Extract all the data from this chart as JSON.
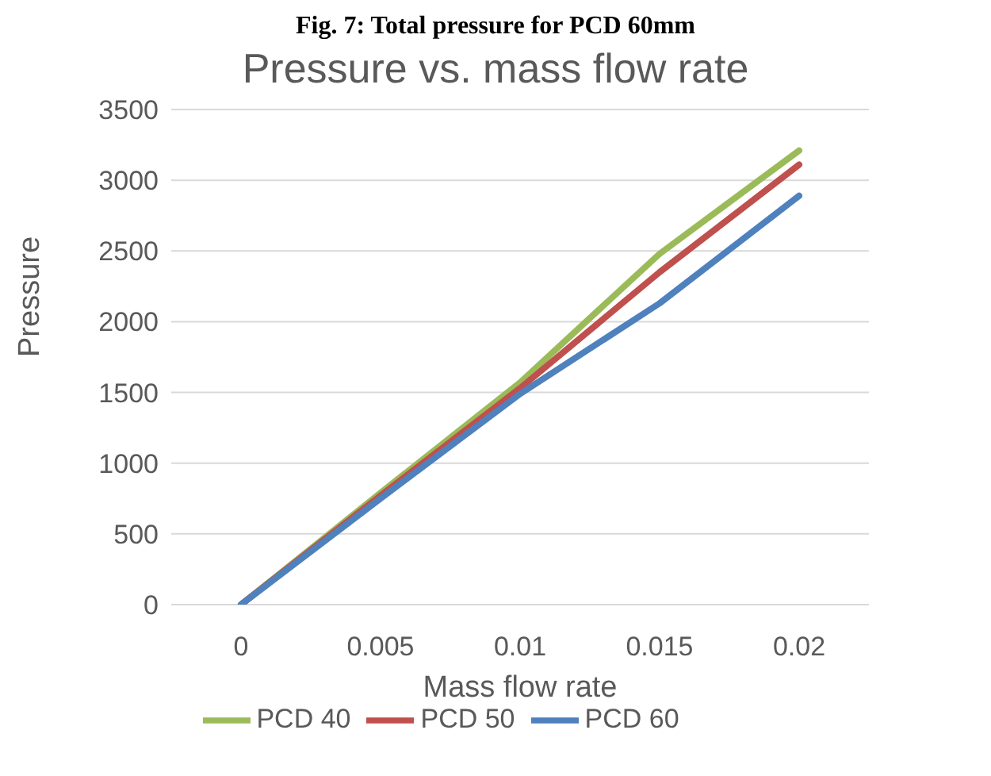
{
  "chart_data": {
    "type": "line",
    "title": "Pressure vs. mass flow rate",
    "xlabel": "Mass flow rate",
    "ylabel": "Pressure",
    "annotations": [
      "Fig. 7: Total pressure for PCD 60mm"
    ],
    "categories": [
      "0",
      "0.005",
      "0.01",
      "0.015",
      "0.02"
    ],
    "series": [
      {
        "name": "PCD 40",
        "color": "#9bbb59",
        "values": [
          0,
          790,
          1570,
          2480,
          3210
        ]
      },
      {
        "name": "PCD 50",
        "color": "#c0504d",
        "values": [
          0,
          770,
          1530,
          2350,
          3110
        ]
      },
      {
        "name": "PCD 60",
        "color": "#4f81bd",
        "values": [
          0,
          750,
          1490,
          2130,
          2890
        ]
      }
    ],
    "ylim": [
      0,
      3500
    ],
    "yticks": [
      0,
      500,
      1000,
      1500,
      2000,
      2500,
      3000,
      3500
    ],
    "grid": "y",
    "legend": "bottom",
    "marker": "none",
    "line_style": "solid"
  }
}
